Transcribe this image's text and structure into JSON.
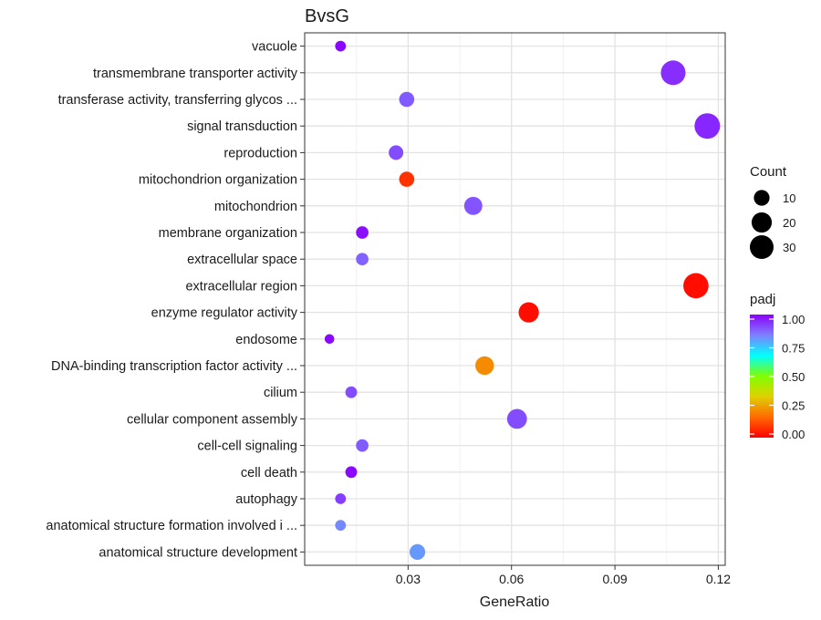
{
  "chart_data": {
    "type": "scatter",
    "title": "BvsG",
    "xlabel": "GeneRatio",
    "ylabel": "",
    "xlim": [
      0.0,
      0.122
    ],
    "xticks": [
      0.03,
      0.06,
      0.09,
      0.12
    ],
    "xtick_labels": [
      "0.03",
      "0.06",
      "0.09",
      "0.12"
    ],
    "grid": true,
    "categories": [
      "vacuole",
      "transmembrane transporter activity",
      "transferase activity, transferring glycos ...",
      "signal transduction",
      "reproduction",
      "mitochondrion organization",
      "mitochondrion",
      "membrane organization",
      "extracellular space",
      "extracellular region",
      "enzyme regulator activity",
      "endosome",
      "DNA-binding transcription factor activity ...",
      "cilium",
      "cellular component assembly",
      "cell-cell signaling",
      "cell death",
      "autophagy",
      "anatomical structure formation involved i ...",
      "anatomical structure development"
    ],
    "points": [
      {
        "term": "vacuole",
        "gene_ratio": 0.0104,
        "count": 3,
        "padj": 0.99
      },
      {
        "term": "transmembrane transporter activity",
        "gene_ratio": 0.1069,
        "count": 33,
        "padj": 0.94
      },
      {
        "term": "transferase activity, transferring glycos ...",
        "gene_ratio": 0.0296,
        "count": 9,
        "padj": 0.88
      },
      {
        "term": "signal transduction",
        "gene_ratio": 0.1168,
        "count": 36,
        "padj": 0.95
      },
      {
        "term": "reproduction",
        "gene_ratio": 0.0265,
        "count": 8,
        "padj": 0.9
      },
      {
        "term": "mitochondrion organization",
        "gene_ratio": 0.0296,
        "count": 9,
        "padj": 0.08
      },
      {
        "term": "mitochondrion",
        "gene_ratio": 0.0489,
        "count": 15,
        "padj": 0.89
      },
      {
        "term": "membrane organization",
        "gene_ratio": 0.0167,
        "count": 5,
        "padj": 0.98
      },
      {
        "term": "extracellular space",
        "gene_ratio": 0.0167,
        "count": 5,
        "padj": 0.87
      },
      {
        "term": "extracellular region",
        "gene_ratio": 0.1135,
        "count": 35,
        "padj": 0.02
      },
      {
        "term": "enzyme regulator activity",
        "gene_ratio": 0.065,
        "count": 20,
        "padj": 0.02
      },
      {
        "term": "endosome",
        "gene_ratio": 0.0072,
        "count": 2,
        "padj": 0.99
      },
      {
        "term": "DNA-binding transcription factor activity ...",
        "gene_ratio": 0.0522,
        "count": 16,
        "padj": 0.22
      },
      {
        "term": "cilium",
        "gene_ratio": 0.0135,
        "count": 4,
        "padj": 0.9
      },
      {
        "term": "cellular component assembly",
        "gene_ratio": 0.0616,
        "count": 19,
        "padj": 0.9
      },
      {
        "term": "cell-cell signaling",
        "gene_ratio": 0.0167,
        "count": 5,
        "padj": 0.88
      },
      {
        "term": "cell death",
        "gene_ratio": 0.0135,
        "count": 4,
        "padj": 0.99
      },
      {
        "term": "autophagy",
        "gene_ratio": 0.0104,
        "count": 3,
        "padj": 0.92
      },
      {
        "term": "anatomical structure formation involved i ...",
        "gene_ratio": 0.0104,
        "count": 3,
        "padj": 0.82
      },
      {
        "term": "anatomical structure development",
        "gene_ratio": 0.0327,
        "count": 10,
        "padj": 0.8
      }
    ],
    "legend_size": {
      "title": "Count",
      "values": [
        10,
        20,
        30
      ],
      "labels": [
        "10",
        "20",
        "30"
      ],
      "position": "right"
    },
    "legend_color": {
      "title": "padj",
      "ticks": [
        1.0,
        0.75,
        0.5,
        0.25,
        0.0
      ],
      "labels": [
        "1.00",
        "0.75",
        "0.50",
        "0.25",
        "0.00"
      ],
      "colors": [
        "#ff0000",
        "#ff6a00",
        "#e0d000",
        "#7fff00",
        "#00ffff",
        "#7f7fff",
        "#8b00ff"
      ],
      "position": "right"
    }
  }
}
